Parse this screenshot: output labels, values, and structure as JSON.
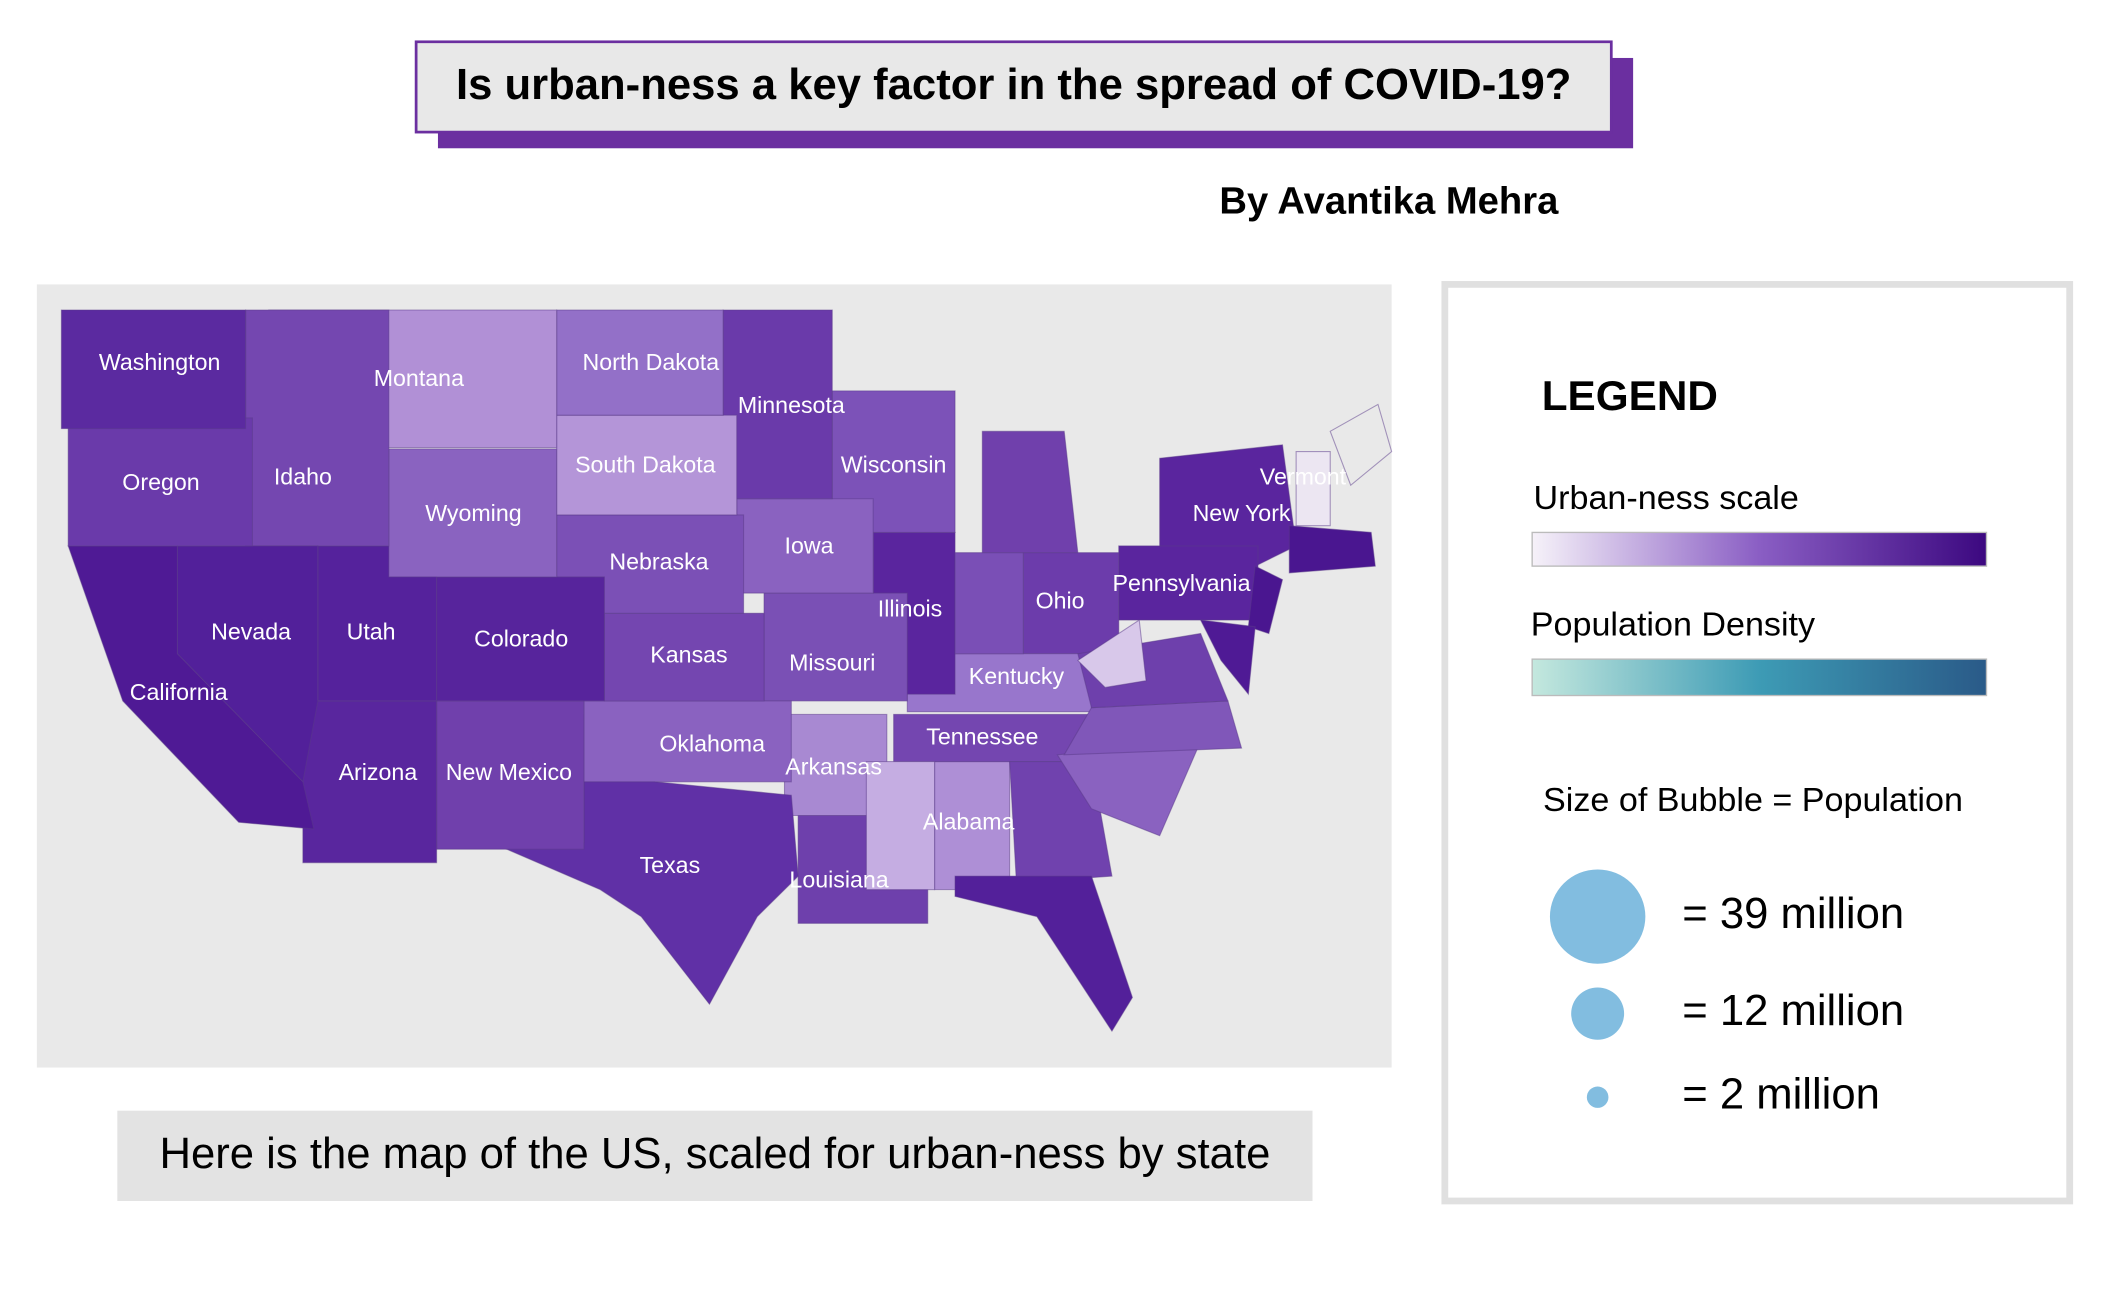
{
  "header": {
    "title": "Is urban-ness a key factor in the spread of COVID-19?",
    "author": "By Avantika Mehra"
  },
  "map": {
    "caption": "Here is the map of the US, scaled for urban-ness by state",
    "states": [
      {
        "name": "Washington",
        "color": "#5b2aa0"
      },
      {
        "name": "Oregon",
        "color": "#6a3aaa"
      },
      {
        "name": "California",
        "color": "#4f1a95"
      },
      {
        "name": "Nevada",
        "color": "#52209a"
      },
      {
        "name": "Idaho",
        "color": "#7447b0"
      },
      {
        "name": "Montana",
        "color": "#b190d6"
      },
      {
        "name": "Wyoming",
        "color": "#8a63c0"
      },
      {
        "name": "Utah",
        "color": "#55229c"
      },
      {
        "name": "Colorado",
        "color": "#57249c"
      },
      {
        "name": "Arizona",
        "color": "#59269e"
      },
      {
        "name": "New Mexico",
        "color": "#7040ac"
      },
      {
        "name": "North Dakota",
        "color": "#9370c8"
      },
      {
        "name": "South Dakota",
        "color": "#b495d8"
      },
      {
        "name": "Nebraska",
        "color": "#7b50b6"
      },
      {
        "name": "Kansas",
        "color": "#7446b0"
      },
      {
        "name": "Oklahoma",
        "color": "#8a62c0"
      },
      {
        "name": "Texas",
        "color": "#6030a6"
      },
      {
        "name": "Minnesota",
        "color": "#6a3aaa"
      },
      {
        "name": "Iowa",
        "color": "#8a62c0"
      },
      {
        "name": "Missouri",
        "color": "#7a50b5"
      },
      {
        "name": "Arkansas",
        "color": "#a889d2"
      },
      {
        "name": "Louisiana",
        "color": "#6e40ac"
      },
      {
        "name": "Wisconsin",
        "color": "#7c52b8"
      },
      {
        "name": "Illinois",
        "color": "#5a259e"
      },
      {
        "name": "Kentucky",
        "color": "#9876cc"
      },
      {
        "name": "Ohio",
        "color": "#6c3cab"
      },
      {
        "name": "Tennessee",
        "color": "#7446b0"
      },
      {
        "name": "Alabama",
        "color": "#ae8fd6"
      },
      {
        "name": "Pennsylvania",
        "color": "#5a259e"
      },
      {
        "name": "New York",
        "color": "#5a259e"
      },
      {
        "name": "Vermont",
        "color": "#ece6f2"
      }
    ]
  },
  "legend": {
    "title": "LEGEND",
    "urban_scale": "Urban-ness scale",
    "population_density": "Population Density",
    "bubble_title": "Size of Bubble = Population",
    "bubbles": [
      {
        "value": 39,
        "label": "= 39 million"
      },
      {
        "value": 12,
        "label": "= 12 million"
      },
      {
        "value": 2,
        "label": "= 2 million"
      }
    ]
  }
}
